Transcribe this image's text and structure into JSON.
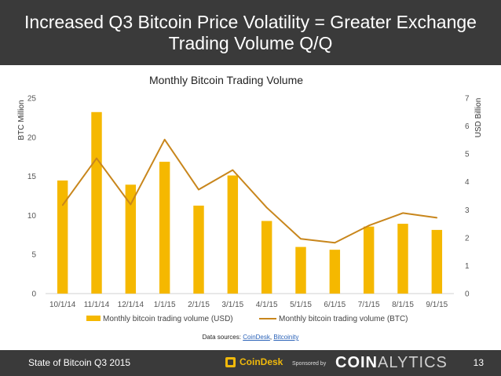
{
  "header": {
    "title": "Increased Q3 Bitcoin Price Volatility = Greater Exchange Trading Volume Q/Q"
  },
  "chart_data": {
    "type": "bar",
    "title": "Monthly Bitcoin Trading Volume",
    "categories": [
      "10/1/14",
      "11/1/14",
      "12/1/14",
      "1/1/15",
      "2/1/15",
      "3/1/15",
      "4/1/15",
      "5/1/15",
      "6/1/15",
      "7/1/15",
      "8/1/15",
      "9/1/15"
    ],
    "series": [
      {
        "name": "Monthly bitcoin trading volume (USD)",
        "kind": "bar",
        "axis": "right",
        "color": "#f5b800",
        "values": [
          4.05,
          6.5,
          3.9,
          4.72,
          3.15,
          4.23,
          2.6,
          1.67,
          1.57,
          2.4,
          2.5,
          2.28
        ]
      },
      {
        "name": "Monthly bitcoin trading volume (BTC)",
        "kind": "line",
        "axis": "left",
        "color": "#c8861c",
        "values": [
          11.3,
          17.3,
          11.4,
          19.7,
          13.3,
          15.8,
          11.0,
          7.0,
          6.5,
          8.7,
          10.3,
          9.7
        ]
      }
    ],
    "ylabel": "BTC Million",
    "ylim": [
      0,
      25
    ],
    "yticks": [
      "0",
      "5",
      "10",
      "15",
      "20",
      "25"
    ],
    "y2label": "USD Billion",
    "y2lim": [
      0,
      7
    ],
    "y2ticks": [
      "0",
      "1",
      "2",
      "3",
      "4",
      "5",
      "6",
      "7"
    ],
    "legend_position": "bottom"
  },
  "sources": {
    "prefix": "Data sources: ",
    "link1": "CoinDesk",
    "sep": ", ",
    "link2": "Bitcoinity"
  },
  "footer": {
    "left_text": "State of Bitcoin Q3 2015",
    "brand": "CoinDesk",
    "sponsored": "Sponsored by",
    "sponsor_bold": "COIN",
    "sponsor_thin": "ALYTICS",
    "page_number": "13"
  }
}
